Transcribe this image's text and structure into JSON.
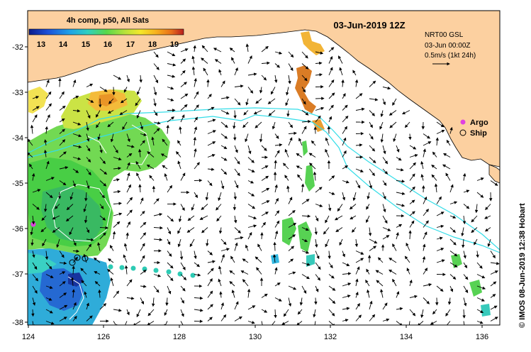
{
  "map": {
    "date_title": "03-Jun-2019 12Z",
    "colorbar": {
      "title": "4h comp, p50, All Sats",
      "ticks": [
        "13",
        "14",
        "15",
        "16",
        "17",
        "18",
        "19"
      ],
      "colors": [
        "#0a1a8c",
        "#1c4fd8",
        "#1fa0e8",
        "#2fd0c0",
        "#58d84a",
        "#b8e23a",
        "#f4e82a",
        "#f8b21c",
        "#e8701a",
        "#b81e1e"
      ]
    },
    "currents": {
      "source": "NRT00 GSL",
      "time": "03-Jun 00:00Z",
      "scale": "0.5m/s (1kt 24h)"
    },
    "legend": {
      "argo": "Argo",
      "ship": "Ship",
      "argo_color": "#e040e0"
    },
    "lat_ticks": [
      "-32",
      "-33",
      "-34",
      "-35",
      "-36",
      "-37",
      "-38"
    ],
    "lon_ticks": [
      "124",
      "126",
      "128",
      "130",
      "132",
      "134",
      "136"
    ],
    "credit": "© IMOS 08-Jun-2019 12:38 Hobart",
    "colors": {
      "land": "#fcd0a0",
      "coast": "#000000",
      "contour": "#33dde8"
    }
  }
}
